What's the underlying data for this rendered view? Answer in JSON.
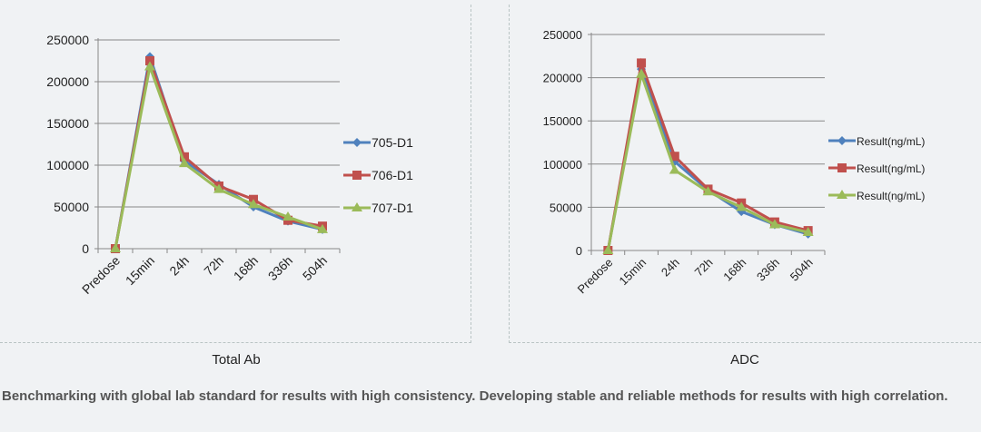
{
  "chart_data": [
    {
      "type": "line",
      "title": "",
      "categories": [
        "Predose",
        "15min",
        "24h",
        "72h",
        "168h",
        "336h",
        "504h"
      ],
      "ylim": [
        0,
        250000
      ],
      "yticks": [
        0,
        50000,
        100000,
        150000,
        200000,
        250000
      ],
      "grid": true,
      "legend": "right",
      "series": [
        {
          "name": "705-D1",
          "color": "#4f81bd",
          "marker": "diamond",
          "values": [
            0,
            230000,
            105000,
            77000,
            50000,
            33000,
            23000
          ]
        },
        {
          "name": "706-D1",
          "color": "#c0504d",
          "marker": "square",
          "values": [
            0,
            225000,
            110000,
            75000,
            59000,
            34000,
            27000
          ]
        },
        {
          "name": "707-D1",
          "color": "#9bbb59",
          "marker": "triangle",
          "values": [
            0,
            218000,
            102000,
            71000,
            53000,
            38000,
            23000
          ]
        }
      ],
      "caption": "Total Ab"
    },
    {
      "type": "line",
      "title": "",
      "categories": [
        "Predose",
        "15min",
        "24h",
        "72h",
        "168h",
        "336h",
        "504h"
      ],
      "ylim": [
        0,
        250000
      ],
      "yticks": [
        0,
        50000,
        100000,
        150000,
        200000,
        250000
      ],
      "grid": true,
      "legend": "right",
      "series": [
        {
          "name": "Result(ng/mL)",
          "color": "#4f81bd",
          "marker": "diamond",
          "values": [
            0,
            210000,
            103000,
            70000,
            45000,
            30000,
            19000
          ]
        },
        {
          "name": "Result(ng/mL)",
          "color": "#c0504d",
          "marker": "square",
          "values": [
            0,
            217000,
            109000,
            71000,
            55000,
            33000,
            23000
          ]
        },
        {
          "name": "Result(ng/mL)",
          "color": "#9bbb59",
          "marker": "triangle",
          "values": [
            0,
            204000,
            93000,
            68000,
            50000,
            30000,
            21000
          ]
        }
      ],
      "caption": "ADC"
    }
  ],
  "footer": "Benchmarking with global lab standard for results with high consistency. Developing stable and reliable methods for results with high correlation."
}
